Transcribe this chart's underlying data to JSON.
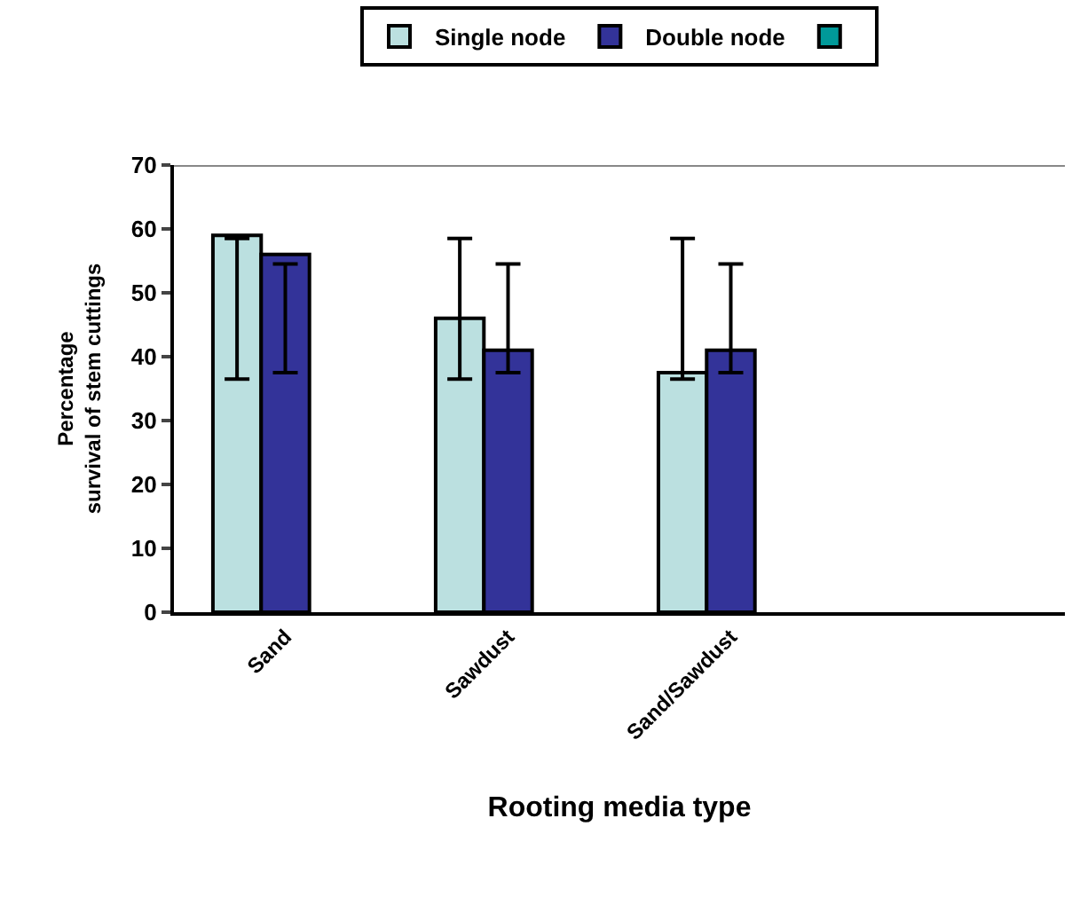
{
  "chart_data": {
    "type": "bar",
    "xlabel": "Rooting media type",
    "ylabel": "Percentage\nsurvival of stem cuttings",
    "categories": [
      "Sand",
      "Sawdust",
      "Sand/Sawdust",
      null
    ],
    "series": [
      {
        "name": "Single node",
        "color": "#bbe0e0",
        "values": [
          59,
          46,
          37.5,
          null
        ],
        "errors": [
          [
            36.5,
            58.5
          ],
          [
            36.5,
            58.5
          ],
          [
            36.5,
            58.5
          ],
          null
        ]
      },
      {
        "name": "Double node",
        "color": "#333399",
        "values": [
          56,
          41,
          41,
          null
        ],
        "errors": [
          [
            37.5,
            54.5
          ],
          [
            37.5,
            54.5
          ],
          [
            37.5,
            54.5
          ],
          null
        ]
      },
      {
        "color": "#009999",
        "values": [
          null,
          null,
          null,
          null
        ]
      }
    ],
    "ylim": [
      0,
      70
    ],
    "yticks": [
      0,
      10,
      20,
      30,
      40,
      50,
      60,
      70
    ],
    "grid": false,
    "legend": "top"
  }
}
